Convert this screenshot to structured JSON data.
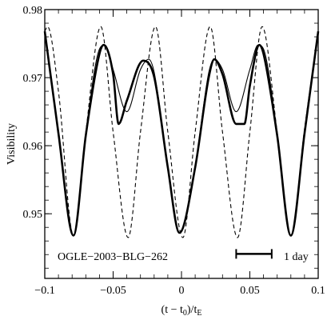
{
  "chart_data": {
    "type": "line",
    "xlabel": "(t − t0)/tE",
    "ylabel": "Visibility",
    "xlim": [
      -0.1,
      0.1
    ],
    "ylim": [
      0.9405,
      0.98
    ],
    "x_ticks": [
      -0.1,
      -0.05,
      0,
      0.05,
      0.1
    ],
    "x_tick_labels": [
      "−0.1",
      "−0.05",
      "0",
      "0.05",
      "0.1"
    ],
    "y_ticks": [
      0.95,
      0.96,
      0.97,
      0.98
    ],
    "y_tick_labels": [
      "0.95",
      "0.96",
      "0.97",
      "0.98"
    ],
    "annotation": "OGLE−2003−BLG−262",
    "scale_bar": {
      "label": "1 day",
      "x_start": 0.04,
      "x_end": 0.066,
      "y": 0.9441
    },
    "series": [
      {
        "style": "thick-solid",
        "x": [
          -0.1,
          -0.09,
          -0.079,
          -0.07,
          -0.06,
          -0.057,
          -0.05,
          -0.046,
          -0.04,
          -0.028,
          -0.02,
          -0.01,
          -0.0015,
          0.01,
          0.02,
          0.024,
          0.03,
          0.04,
          0.046,
          0.05,
          0.057,
          0.06,
          0.07,
          0.08,
          0.09,
          0.1
        ],
        "y": [
          0.9768,
          0.9618,
          0.9468,
          0.9615,
          0.9735,
          0.9748,
          0.9705,
          0.9632,
          0.9666,
          0.9725,
          0.9701,
          0.9568,
          0.9472,
          0.9568,
          0.9701,
          0.9727,
          0.9705,
          0.9632,
          0.9632,
          0.9688,
          0.9748,
          0.9735,
          0.9615,
          0.9468,
          0.9618,
          0.9768
        ]
      },
      {
        "style": "thin-solid",
        "x": [
          -0.1,
          -0.09,
          -0.079,
          -0.07,
          -0.06,
          -0.056,
          -0.05,
          -0.04,
          -0.03,
          -0.024,
          -0.02,
          -0.01,
          -0.0015,
          0.01,
          0.02,
          0.024,
          0.03,
          0.04,
          0.05,
          0.056,
          0.06,
          0.07,
          0.08,
          0.09,
          0.1
        ],
        "y": [
          0.9768,
          0.9618,
          0.9468,
          0.9618,
          0.9742,
          0.9748,
          0.9712,
          0.965,
          0.9712,
          0.9727,
          0.9708,
          0.957,
          0.9472,
          0.957,
          0.9708,
          0.9727,
          0.9712,
          0.965,
          0.9712,
          0.9748,
          0.9742,
          0.9618,
          0.9468,
          0.9618,
          0.9768
        ]
      },
      {
        "style": "dashed",
        "x": [
          -0.1,
          -0.098,
          -0.09,
          -0.079,
          -0.07,
          -0.059,
          -0.05,
          -0.039,
          -0.03,
          -0.019,
          -0.01,
          0.001,
          0.01,
          0.021,
          0.03,
          0.041,
          0.05,
          0.059,
          0.07,
          0.08,
          0.09,
          0.1
        ],
        "y": [
          0.9768,
          0.9775,
          0.968,
          0.9468,
          0.962,
          0.9775,
          0.962,
          0.9465,
          0.962,
          0.9775,
          0.962,
          0.9465,
          0.962,
          0.9775,
          0.962,
          0.9465,
          0.962,
          0.9775,
          0.962,
          0.9468,
          0.9625,
          0.9768
        ]
      }
    ]
  }
}
